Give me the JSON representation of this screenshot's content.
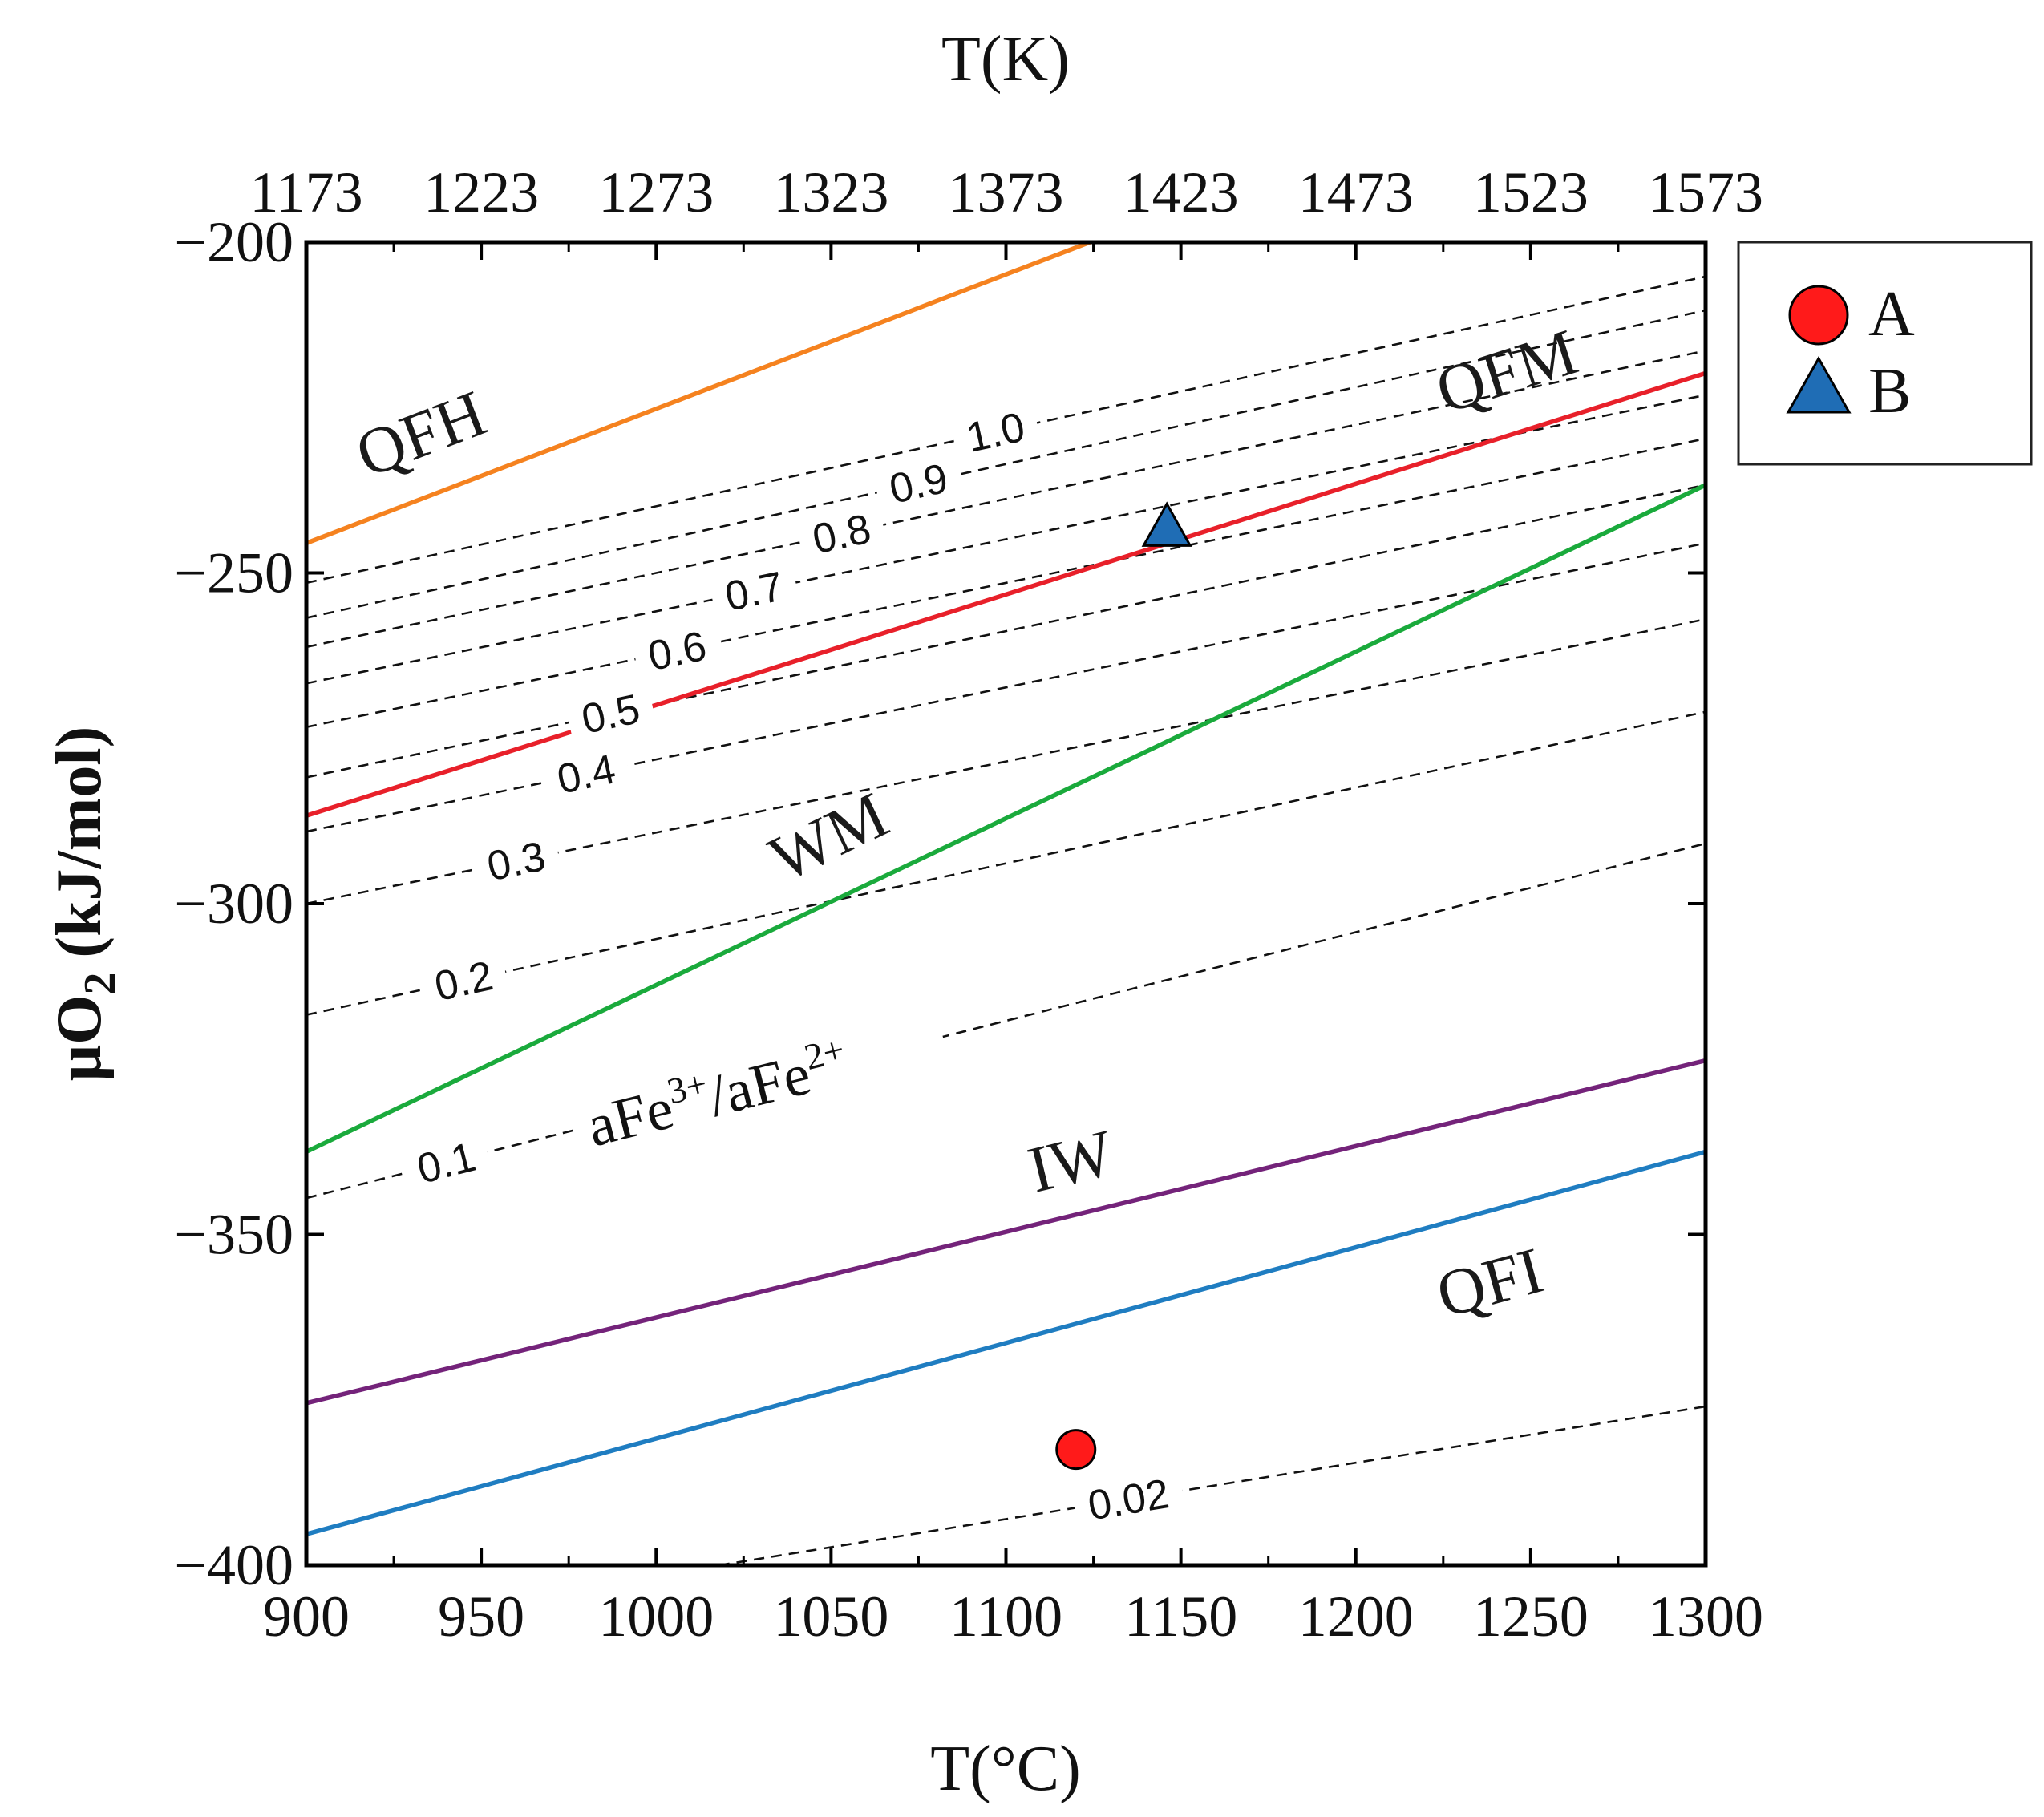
{
  "chart_data": {
    "type": "line",
    "title": "",
    "xlabel": "T(°C)",
    "ylabel": "μO",
    "ylabel_sub": "2",
    "ylabel_unit": "(kJ/mol)",
    "top_xlabel": "T(K)",
    "xlim": [
      900,
      1300
    ],
    "ylim": [
      -400,
      -200
    ],
    "x_ticks": [
      900,
      950,
      1000,
      1050,
      1100,
      1150,
      1200,
      1250,
      1300
    ],
    "x_tick_labels": [
      "900",
      "950",
      "1000",
      "1050",
      "1100",
      "1150",
      "1200",
      "1250",
      "1300"
    ],
    "top_ticks": [
      1173,
      1223,
      1273,
      1323,
      1373,
      1423,
      1473,
      1523,
      1573
    ],
    "y_ticks": [
      -200,
      -250,
      -300,
      -350,
      -400
    ],
    "y_tick_labels": [
      "−200",
      "−250",
      "−300",
      "−350",
      "−400"
    ],
    "grid": false,
    "buffers": [
      {
        "name": "QFH",
        "color": "#F5821F",
        "x": [
          900,
          1124
        ],
        "y": [
          -245.5,
          -200
        ],
        "label": "QFH"
      },
      {
        "name": "QFM",
        "color": "#E8202A",
        "x": [
          900,
          1300
        ],
        "y": [
          -286.7,
          -219.8
        ],
        "label": "QFM"
      },
      {
        "name": "WM",
        "color": "#1AAA3C",
        "x": [
          900,
          1300
        ],
        "y": [
          -337.5,
          -236.7
        ],
        "label": "WM"
      },
      {
        "name": "IW",
        "color": "#74237A",
        "x": [
          900,
          1300
        ],
        "y": [
          -375.5,
          -323.7
        ],
        "label": "IW"
      },
      {
        "name": "QFI",
        "color": "#1F7DC1",
        "x": [
          900,
          1300
        ],
        "y": [
          -395.3,
          -337.5
        ],
        "label": "QFI"
      }
    ],
    "ratio_isopleths": [
      {
        "label": "1.0",
        "x": [
          900,
          1300
        ],
        "y": [
          -251.5,
          -205.2
        ]
      },
      {
        "label": "0.9",
        "x": [
          900,
          1300
        ],
        "y": [
          -256.8,
          -210.3
        ]
      },
      {
        "label": "0.8",
        "x": [
          900,
          1300
        ],
        "y": [
          -261.2,
          -216.4
        ]
      },
      {
        "label": "0.7",
        "x": [
          900,
          1300
        ],
        "y": [
          -266.7,
          -223.1
        ]
      },
      {
        "label": "0.6",
        "x": [
          900,
          1300
        ],
        "y": [
          -273.3,
          -229.7
        ]
      },
      {
        "label": "0.5",
        "x": [
          900,
          1300
        ],
        "y": [
          -280.9,
          -236.7
        ]
      },
      {
        "label": "0.4",
        "x": [
          900,
          1300
        ],
        "y": [
          -289.1,
          -245.5
        ]
      },
      {
        "label": "0.3",
        "x": [
          900,
          1300
        ],
        "y": [
          -300.0,
          -257.0
        ]
      },
      {
        "label": "0.2",
        "x": [
          900,
          1300
        ],
        "y": [
          -316.8,
          -271.0
        ]
      },
      {
        "label": "0.1",
        "x": [
          900,
          1300
        ],
        "y": [
          -344.5,
          -290.9
        ]
      },
      {
        "label": "0.02",
        "x": [
          1018,
          1300
        ],
        "y": [
          -400.0,
          -376.0
        ]
      }
    ],
    "isopleth_annotation": "aFe",
    "isopleth_annotation_sup1": "3+",
    "isopleth_annotation_mid": "/aFe",
    "isopleth_annotation_sup2": "2+",
    "points": [
      {
        "name": "A",
        "x": 1120,
        "y": -382.5,
        "marker": "circle",
        "color": "#FF1A1A"
      },
      {
        "name": "B",
        "x": 1146,
        "y": -243.2,
        "marker": "triangle",
        "color": "#1F6DB5"
      }
    ],
    "legend": {
      "position": "outside-top-right",
      "entries": [
        "A",
        "B"
      ]
    }
  }
}
